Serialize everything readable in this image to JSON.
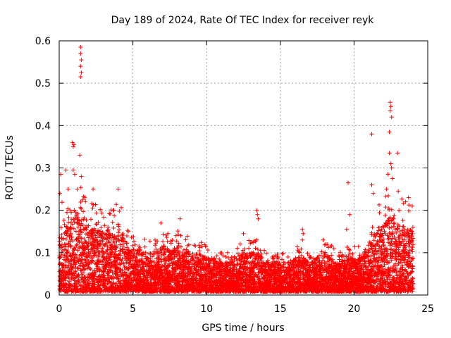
{
  "chart_data": {
    "type": "scatter",
    "title": "Day 189 of 2024, Rate Of TEC Index for receiver reyk",
    "xlabel": "GPS time / hours",
    "ylabel": "ROTI / TECUs",
    "xlim": [
      0,
      25
    ],
    "ylim": [
      0,
      0.6
    ],
    "xticks": [
      0,
      5,
      10,
      15,
      20,
      25
    ],
    "yticks": [
      0,
      0.1,
      0.2,
      0.3,
      0.4,
      0.5,
      0.6
    ],
    "xtick_labels": [
      "0",
      "5",
      "10",
      "15",
      "20",
      "25"
    ],
    "ytick_labels": [
      "0",
      "0.1",
      "0.2",
      "0.3",
      "0.4",
      "0.5",
      "0.6"
    ],
    "grid": true,
    "marker": "+",
    "color": "#ff0000",
    "envelope": {
      "x": [
        0,
        0.5,
        1,
        1.5,
        2,
        2.5,
        3,
        3.5,
        4,
        4.5,
        5,
        5.5,
        6,
        6.5,
        7,
        7.5,
        8,
        8.5,
        9,
        9.5,
        10,
        10.5,
        11,
        11.5,
        12,
        12.5,
        13,
        13.5,
        14,
        14.5,
        15,
        15.5,
        16,
        16.5,
        17,
        17.5,
        18,
        18.5,
        19,
        19.5,
        20,
        20.5,
        21,
        21.5,
        22,
        22.5,
        23,
        23.5,
        24
      ],
      "typical_max": [
        0.15,
        0.17,
        0.2,
        0.2,
        0.16,
        0.15,
        0.14,
        0.15,
        0.16,
        0.12,
        0.1,
        0.1,
        0.09,
        0.09,
        0.11,
        0.1,
        0.11,
        0.1,
        0.09,
        0.09,
        0.08,
        0.08,
        0.07,
        0.07,
        0.08,
        0.09,
        0.09,
        0.09,
        0.07,
        0.07,
        0.07,
        0.07,
        0.08,
        0.08,
        0.07,
        0.08,
        0.09,
        0.08,
        0.07,
        0.08,
        0.08,
        0.08,
        0.1,
        0.15,
        0.16,
        0.18,
        0.17,
        0.15,
        0.15
      ]
    },
    "highlights": [
      {
        "x": 1.45,
        "y": 0.585
      },
      {
        "x": 1.45,
        "y": 0.57
      },
      {
        "x": 1.5,
        "y": 0.555
      },
      {
        "x": 1.45,
        "y": 0.54
      },
      {
        "x": 1.5,
        "y": 0.525
      },
      {
        "x": 1.45,
        "y": 0.515
      },
      {
        "x": 0.9,
        "y": 0.36
      },
      {
        "x": 1.0,
        "y": 0.355
      },
      {
        "x": 0.95,
        "y": 0.35
      },
      {
        "x": 1.4,
        "y": 0.33
      },
      {
        "x": 0.45,
        "y": 0.295
      },
      {
        "x": 0.95,
        "y": 0.295
      },
      {
        "x": 1.05,
        "y": 0.285
      },
      {
        "x": 1.5,
        "y": 0.28
      },
      {
        "x": 0.1,
        "y": 0.285
      },
      {
        "x": 0.6,
        "y": 0.25
      },
      {
        "x": 2.3,
        "y": 0.25
      },
      {
        "x": 4.0,
        "y": 0.25
      },
      {
        "x": 0.05,
        "y": 0.24
      },
      {
        "x": 8.2,
        "y": 0.18
      },
      {
        "x": 6.9,
        "y": 0.17
      },
      {
        "x": 13.4,
        "y": 0.2
      },
      {
        "x": 13.45,
        "y": 0.19
      },
      {
        "x": 13.5,
        "y": 0.18
      },
      {
        "x": 13.4,
        "y": 0.13
      },
      {
        "x": 12.5,
        "y": 0.145
      },
      {
        "x": 16.5,
        "y": 0.155
      },
      {
        "x": 16.55,
        "y": 0.145
      },
      {
        "x": 16.5,
        "y": 0.13
      },
      {
        "x": 17.9,
        "y": 0.13
      },
      {
        "x": 19.6,
        "y": 0.265
      },
      {
        "x": 19.7,
        "y": 0.19
      },
      {
        "x": 19.5,
        "y": 0.155
      },
      {
        "x": 21.2,
        "y": 0.38
      },
      {
        "x": 21.2,
        "y": 0.26
      },
      {
        "x": 21.3,
        "y": 0.24
      },
      {
        "x": 22.45,
        "y": 0.455
      },
      {
        "x": 22.5,
        "y": 0.445
      },
      {
        "x": 22.45,
        "y": 0.435
      },
      {
        "x": 22.55,
        "y": 0.42
      },
      {
        "x": 22.4,
        "y": 0.385
      },
      {
        "x": 22.4,
        "y": 0.335
      },
      {
        "x": 22.95,
        "y": 0.335
      },
      {
        "x": 22.5,
        "y": 0.31
      },
      {
        "x": 22.55,
        "y": 0.3
      },
      {
        "x": 22.3,
        "y": 0.285
      },
      {
        "x": 22.6,
        "y": 0.275
      },
      {
        "x": 22.2,
        "y": 0.25
      },
      {
        "x": 23.0,
        "y": 0.245
      },
      {
        "x": 23.7,
        "y": 0.23
      },
      {
        "x": 23.5,
        "y": 0.22
      },
      {
        "x": 23.95,
        "y": 0.21
      }
    ]
  }
}
